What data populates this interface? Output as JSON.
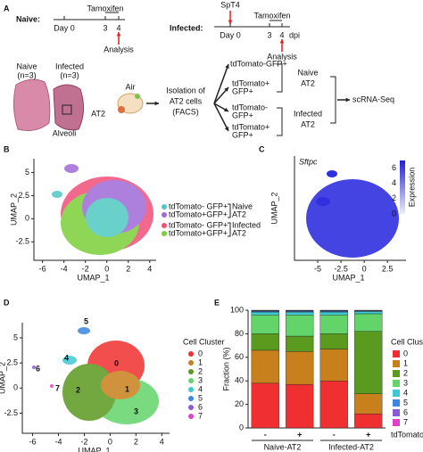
{
  "panel_labels": [
    "A",
    "B",
    "C",
    "D",
    "E"
  ],
  "panel_a": {
    "naive": {
      "label": "Naive:",
      "timeline": [
        "Day 0",
        "3",
        "4"
      ],
      "treatment": "Tamoxifen",
      "analysis": "Analysis"
    },
    "infected": {
      "label": "Infected:",
      "infection": "SpT4",
      "timeline": [
        "Day 0",
        "3",
        "4"
      ],
      "unit": "dpi",
      "treatment": "Tamoxifen",
      "analysis": "Analysis"
    },
    "groups": [
      [
        "Naive",
        "(n=3)"
      ],
      [
        "Infected",
        "(n=3)"
      ]
    ],
    "tissue_labels": {
      "alveoli": "Alveoli",
      "air": "Air",
      "cell": "AT2"
    },
    "isolation": [
      "Isolation of",
      "AT2 cells",
      "(FACS)"
    ],
    "populations": [
      [
        "tdTomato-",
        "GFP+"
      ],
      [
        "tdTomato+",
        "GFP+"
      ],
      [
        "tdTomato-",
        "GFP+"
      ],
      [
        "tdTomato+",
        "GFP+"
      ]
    ],
    "sample_groups": [
      [
        "Naive",
        "AT2"
      ],
      [
        "Infected",
        "AT2"
      ]
    ],
    "method": "scRNA-Seq"
  },
  "panel_b": {
    "x_label": "UMAP_1",
    "y_label": "UMAP_2",
    "xlim": [
      -6.8,
      4.6
    ],
    "xticks": [
      -6,
      -4,
      -2,
      0,
      2,
      4
    ],
    "ylim": [
      -4.5,
      6.5
    ],
    "yticks": [
      -2.5,
      0,
      2.5,
      5
    ],
    "legend": [
      {
        "name": "tdTomato- GFP+",
        "color": "#4fc9c0"
      },
      {
        "name": "tdTomato+GFP+",
        "color": "#a06ad8"
      },
      {
        "name": "tdTomato- GFP+",
        "color": "#f0507a"
      },
      {
        "name": "tdTomato+GFP+",
        "color": "#7ccf3a"
      }
    ],
    "legend_groups": [
      [
        "Naive",
        "AT2"
      ],
      [
        "Infected",
        "AT2"
      ]
    ]
  },
  "panel_c": {
    "gene": "Sftpc",
    "x_label": "UMAP_1",
    "y_label": "UMAP_2",
    "xlim": [
      -7.5,
      4.5
    ],
    "xticks": [
      -5,
      -2.5,
      0,
      2.5
    ],
    "colorbar_label": "Expression",
    "colorbar_lim": [
      0,
      7
    ],
    "colorbar_ticks": [
      0,
      2,
      4,
      6
    ]
  },
  "panel_d": {
    "x_label": "UMAP_1",
    "y_label": "UMAP_2",
    "xlim": [
      -6.8,
      4.6
    ],
    "xticks": [
      -6,
      -4,
      -2,
      0,
      2,
      4
    ],
    "ylim": [
      -4.5,
      6.5
    ],
    "yticks": [
      -2.5,
      0,
      2.5,
      5
    ],
    "legend_title": "Cell Cluster",
    "clusters": [
      {
        "name": "0",
        "color": "#f03030"
      },
      {
        "name": "1",
        "color": "#c8801c"
      },
      {
        "name": "2",
        "color": "#5a9a1e"
      },
      {
        "name": "3",
        "color": "#62d46a"
      },
      {
        "name": "4",
        "color": "#3ec8d4"
      },
      {
        "name": "5",
        "color": "#3a86e0"
      },
      {
        "name": "6",
        "color": "#8a5ad8"
      },
      {
        "name": "7",
        "color": "#e040c8"
      }
    ]
  },
  "chart_data": {
    "type": "bar",
    "stacked": true,
    "y_label": "Fraction (%)",
    "x_label": "tdTomato",
    "legend_title": "Cell Cluster",
    "categories": [
      "-",
      "+",
      "-",
      "+"
    ],
    "groups": [
      "Naive-AT2",
      "Infected-AT2"
    ],
    "ylim": [
      0,
      100
    ],
    "yticks": [
      0,
      20,
      40,
      60,
      80,
      100
    ],
    "series": [
      {
        "name": "0",
        "color": "#f03030",
        "values": [
          38,
          37,
          40,
          12
        ]
      },
      {
        "name": "1",
        "color": "#c8801c",
        "values": [
          28,
          28,
          27,
          17
        ]
      },
      {
        "name": "2",
        "color": "#5a9a1e",
        "values": [
          14,
          13,
          13,
          53
        ]
      },
      {
        "name": "3",
        "color": "#62d46a",
        "values": [
          16,
          18,
          16,
          15
        ]
      },
      {
        "name": "4",
        "color": "#3ec8d4",
        "values": [
          2.5,
          2.5,
          2.5,
          2
        ]
      },
      {
        "name": "5",
        "color": "#3a86e0",
        "values": [
          0.8,
          0.8,
          0.8,
          0.5
        ]
      },
      {
        "name": "6",
        "color": "#8a5ad8",
        "values": [
          0.4,
          0.4,
          0.4,
          0.3
        ]
      },
      {
        "name": "7",
        "color": "#e040c8",
        "values": [
          0.3,
          0.3,
          0.3,
          0.2
        ]
      }
    ]
  }
}
